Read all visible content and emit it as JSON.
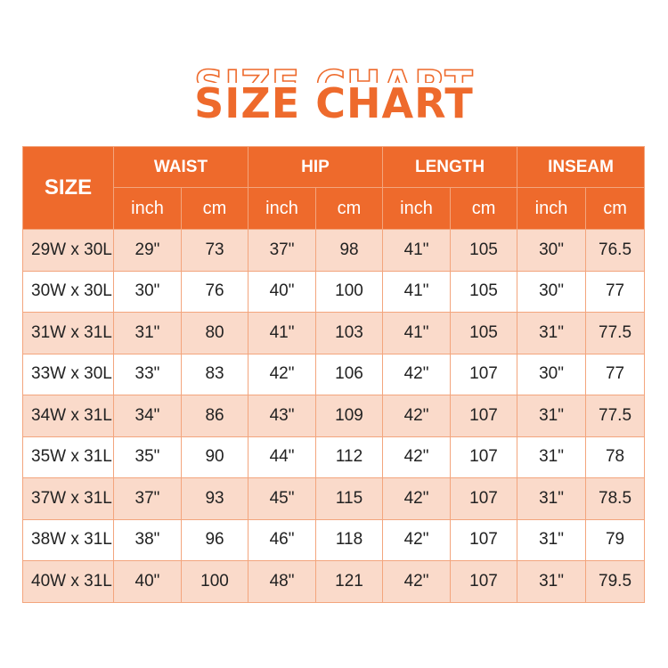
{
  "title": "SIZE CHART",
  "colors": {
    "header": "#EE6A2C",
    "stripe": "#FADACA",
    "border": "#F3A57D"
  },
  "table": {
    "size_header": "SIZE",
    "groups": [
      "WAIST",
      "HIP",
      "LENGTH",
      "INSEAM"
    ],
    "units": [
      "inch",
      "cm",
      "inch",
      "cm",
      "inch",
      "cm",
      "inch",
      "cm"
    ],
    "rows": [
      [
        "29W x 30L",
        "29\"",
        "73",
        "37\"",
        "98",
        "41\"",
        "105",
        "30\"",
        "76.5"
      ],
      [
        "30W x 30L",
        "30\"",
        "76",
        "40\"",
        "100",
        "41\"",
        "105",
        "30\"",
        "77"
      ],
      [
        "31W x 31L",
        "31\"",
        "80",
        "41\"",
        "103",
        "41\"",
        "105",
        "31\"",
        "77.5"
      ],
      [
        "33W x 30L",
        "33\"",
        "83",
        "42\"",
        "106",
        "42\"",
        "107",
        "30\"",
        "77"
      ],
      [
        "34W x 31L",
        "34\"",
        "86",
        "43\"",
        "109",
        "42\"",
        "107",
        "31\"",
        "77.5"
      ],
      [
        "35W x 31L",
        "35\"",
        "90",
        "44\"",
        "112",
        "42\"",
        "107",
        "31\"",
        "78"
      ],
      [
        "37W x 31L",
        "37\"",
        "93",
        "45\"",
        "115",
        "42\"",
        "107",
        "31\"",
        "78.5"
      ],
      [
        "38W x 31L",
        "38\"",
        "96",
        "46\"",
        "118",
        "42\"",
        "107",
        "31\"",
        "79"
      ],
      [
        "40W x 31L",
        "40\"",
        "100",
        "48\"",
        "121",
        "42\"",
        "107",
        "31\"",
        "79.5"
      ]
    ]
  }
}
